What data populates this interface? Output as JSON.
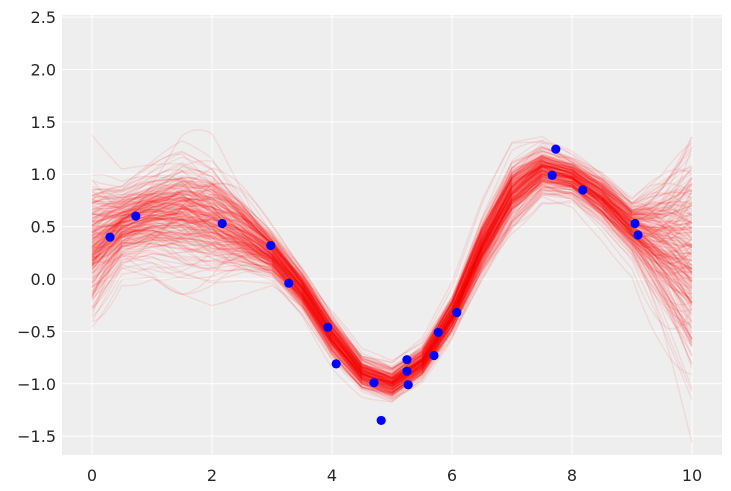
{
  "chart_data": {
    "type": "line",
    "title": "",
    "xlabel": "",
    "ylabel": "",
    "xlim": [
      -0.5,
      10.5
    ],
    "ylim": [
      -1.68,
      2.52
    ],
    "x_ticks": [
      "0",
      "2",
      "4",
      "6",
      "8",
      "10"
    ],
    "x_tick_values": [
      0,
      2,
      4,
      6,
      8,
      10
    ],
    "y_ticks": [
      "−1.5",
      "−1.0",
      "−0.5",
      "0.0",
      "0.5",
      "1.0",
      "1.5",
      "2.0",
      "2.5"
    ],
    "y_tick_values": [
      -1.5,
      -1.0,
      -0.5,
      0.0,
      0.5,
      1.0,
      1.5,
      2.0,
      2.5
    ],
    "grid": true,
    "background": "#eeeeee",
    "series": [
      {
        "kind": "sample-curves",
        "color": "#ff0000",
        "x": [
          0.0,
          0.5,
          1.0,
          1.5,
          2.0,
          2.5,
          3.0,
          3.5,
          4.0,
          4.5,
          5.0,
          5.5,
          6.0,
          6.5,
          7.0,
          7.5,
          8.0,
          8.5,
          9.0,
          9.5,
          10.0
        ],
        "mean": [
          0.32,
          0.52,
          0.62,
          0.66,
          0.6,
          0.45,
          0.24,
          -0.1,
          -0.55,
          -0.9,
          -1.0,
          -0.8,
          -0.35,
          0.3,
          0.82,
          1.05,
          0.98,
          0.78,
          0.5,
          0.35,
          0.22
        ],
        "spread": [
          0.35,
          0.2,
          0.22,
          0.28,
          0.28,
          0.2,
          0.12,
          0.1,
          0.1,
          0.08,
          0.08,
          0.08,
          0.1,
          0.14,
          0.16,
          0.12,
          0.1,
          0.12,
          0.14,
          0.35,
          0.6
        ]
      },
      {
        "kind": "observations",
        "color": "#0000ff",
        "x": [
          0.3,
          0.73,
          2.17,
          2.98,
          3.28,
          3.93,
          4.07,
          4.7,
          4.82,
          5.25,
          5.25,
          5.27,
          5.7,
          5.77,
          6.08,
          7.67,
          7.73,
          8.18,
          9.05,
          9.1
        ],
        "y": [
          0.4,
          0.6,
          0.53,
          0.32,
          -0.04,
          -0.46,
          -0.81,
          -0.99,
          -1.35,
          -0.77,
          -0.88,
          -1.01,
          -0.73,
          -0.51,
          -0.32,
          0.99,
          1.24,
          0.85,
          0.53,
          0.42
        ]
      }
    ]
  }
}
